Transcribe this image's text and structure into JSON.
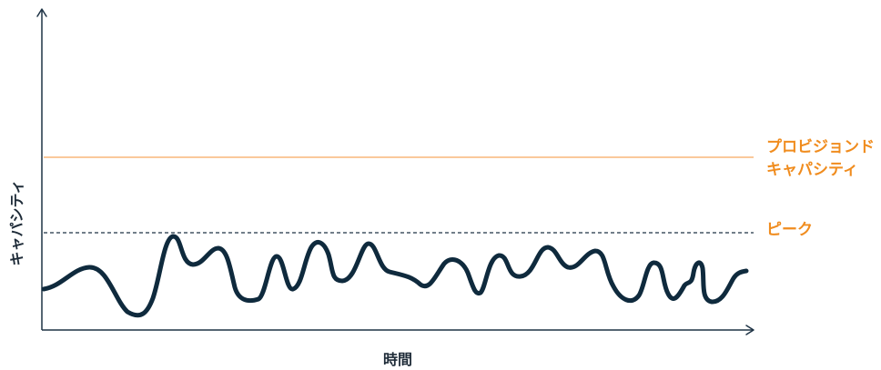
{
  "axes": {
    "y_label": "キャパシティ",
    "x_label": "時間"
  },
  "reference_lines": {
    "provisioned_capacity": {
      "label_line1": "プロビジョンド",
      "label_line2": "キャパシティ",
      "color": "#f8b77a",
      "label_color": "#f08c1e"
    },
    "peak": {
      "label": "ピーク",
      "color": "#1e3345",
      "label_color": "#f08c1e",
      "style": "dashed"
    }
  },
  "usage_curve": {
    "color": "#0f2a3d"
  }
}
